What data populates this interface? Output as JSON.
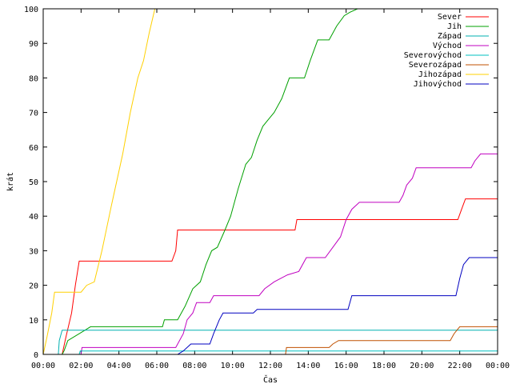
{
  "chart_data": {
    "type": "line",
    "title": "",
    "xlabel": "Čas",
    "ylabel": "krát",
    "xlim": [
      0,
      24
    ],
    "ylim": [
      0,
      100
    ],
    "x_ticks": [
      "00:00",
      "02:00",
      "04:00",
      "06:00",
      "08:00",
      "10:00",
      "12:00",
      "14:00",
      "16:00",
      "18:00",
      "20:00",
      "22:00",
      "00:00"
    ],
    "y_ticks": [
      "0",
      "10",
      "20",
      "30",
      "40",
      "50",
      "60",
      "70",
      "80",
      "90",
      "100"
    ],
    "legend_position": "top-right",
    "grid": false,
    "series": [
      {
        "name": "Sever",
        "color": "#ff0000",
        "points": [
          [
            0,
            0
          ],
          [
            1.0,
            0
          ],
          [
            1.2,
            5
          ],
          [
            1.5,
            12
          ],
          [
            1.7,
            20
          ],
          [
            1.9,
            27
          ],
          [
            6.8,
            27
          ],
          [
            7.0,
            30
          ],
          [
            7.1,
            36
          ],
          [
            13.3,
            36
          ],
          [
            13.4,
            39
          ],
          [
            21.9,
            39
          ],
          [
            22.1,
            42
          ],
          [
            22.3,
            45
          ],
          [
            24,
            45
          ]
        ]
      },
      {
        "name": "Jih",
        "color": "#00a000",
        "points": [
          [
            0,
            0
          ],
          [
            1.0,
            0
          ],
          [
            1.1,
            1
          ],
          [
            1.3,
            4
          ],
          [
            2.2,
            7
          ],
          [
            2.5,
            8
          ],
          [
            6.3,
            8
          ],
          [
            6.4,
            10
          ],
          [
            7.1,
            10
          ],
          [
            7.5,
            14
          ],
          [
            7.9,
            19
          ],
          [
            8.3,
            21
          ],
          [
            8.6,
            26
          ],
          [
            8.9,
            30
          ],
          [
            9.2,
            31
          ],
          [
            9.6,
            36
          ],
          [
            9.9,
            40
          ],
          [
            10.3,
            48
          ],
          [
            10.7,
            55
          ],
          [
            11.0,
            57
          ],
          [
            11.3,
            62
          ],
          [
            11.6,
            66
          ],
          [
            11.9,
            68
          ],
          [
            12.2,
            70
          ],
          [
            12.6,
            74
          ],
          [
            13.0,
            80
          ],
          [
            13.8,
            80
          ],
          [
            14.1,
            85
          ],
          [
            14.5,
            91
          ],
          [
            15.1,
            91
          ],
          [
            15.5,
            95
          ],
          [
            15.9,
            98
          ],
          [
            16.2,
            99
          ],
          [
            16.6,
            100
          ],
          [
            24,
            100
          ]
        ]
      },
      {
        "name": "Západ",
        "color": "#00b0b0",
        "points": [
          [
            0,
            0
          ],
          [
            0.8,
            0
          ],
          [
            0.85,
            4
          ],
          [
            1.0,
            7
          ],
          [
            24,
            7
          ]
        ]
      },
      {
        "name": "Východ",
        "color": "#c000c0",
        "points": [
          [
            0,
            0
          ],
          [
            2.0,
            0
          ],
          [
            2.05,
            2
          ],
          [
            7.0,
            2
          ],
          [
            7.4,
            6
          ],
          [
            7.6,
            10
          ],
          [
            7.9,
            12
          ],
          [
            8.1,
            15
          ],
          [
            8.8,
            15
          ],
          [
            9.0,
            17
          ],
          [
            11.4,
            17
          ],
          [
            11.7,
            19
          ],
          [
            12.2,
            21
          ],
          [
            12.9,
            23
          ],
          [
            13.5,
            24
          ],
          [
            13.9,
            28
          ],
          [
            14.9,
            28
          ],
          [
            15.3,
            31
          ],
          [
            15.7,
            34
          ],
          [
            16.0,
            39
          ],
          [
            16.3,
            42
          ],
          [
            16.7,
            44
          ],
          [
            18.8,
            44
          ],
          [
            19.0,
            46
          ],
          [
            19.2,
            49
          ],
          [
            19.5,
            51
          ],
          [
            19.7,
            54
          ],
          [
            22.6,
            54
          ],
          [
            22.8,
            56
          ],
          [
            23.1,
            58
          ],
          [
            24,
            58
          ]
        ]
      },
      {
        "name": "Severovýchod",
        "color": "#00c0c0",
        "points": [
          [
            0,
            0
          ],
          [
            1.9,
            0
          ],
          [
            1.95,
            1
          ],
          [
            24,
            1
          ]
        ]
      },
      {
        "name": "Severozápad",
        "color": "#c05000",
        "points": [
          [
            0,
            0
          ],
          [
            12.8,
            0
          ],
          [
            12.85,
            2
          ],
          [
            15.1,
            2
          ],
          [
            15.3,
            3
          ],
          [
            15.6,
            4
          ],
          [
            21.5,
            4
          ],
          [
            21.7,
            6
          ],
          [
            22.0,
            8
          ],
          [
            24,
            8
          ]
        ]
      },
      {
        "name": "Jihozápad",
        "color": "#ffd000",
        "points": [
          [
            0,
            0
          ],
          [
            0.2,
            5
          ],
          [
            0.45,
            12
          ],
          [
            0.6,
            18
          ],
          [
            2.0,
            18
          ],
          [
            2.3,
            20
          ],
          [
            2.7,
            21
          ],
          [
            3.1,
            30
          ],
          [
            3.6,
            43
          ],
          [
            4.2,
            58
          ],
          [
            4.6,
            70
          ],
          [
            5.0,
            80
          ],
          [
            5.3,
            85
          ],
          [
            5.6,
            93
          ],
          [
            5.9,
            100
          ]
        ]
      },
      {
        "name": "Jihovýchod",
        "color": "#0000c0",
        "points": [
          [
            0,
            0
          ],
          [
            7.1,
            0
          ],
          [
            7.4,
            1
          ],
          [
            7.8,
            3
          ],
          [
            8.8,
            3
          ],
          [
            9.0,
            6
          ],
          [
            9.3,
            10
          ],
          [
            9.5,
            12
          ],
          [
            11.1,
            12
          ],
          [
            11.3,
            13
          ],
          [
            16.1,
            13
          ],
          [
            16.3,
            17
          ],
          [
            21.8,
            17
          ],
          [
            22.0,
            22
          ],
          [
            22.2,
            26
          ],
          [
            22.5,
            28
          ],
          [
            24,
            28
          ]
        ]
      }
    ]
  }
}
